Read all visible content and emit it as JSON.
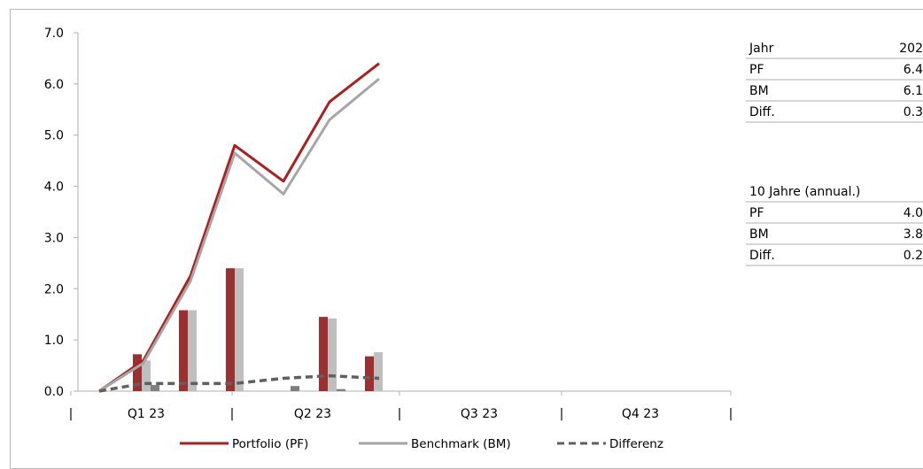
{
  "chart_data": {
    "type": "line",
    "ylim": [
      0,
      7
    ],
    "yticks": [
      "0.0",
      "1.0",
      "2.0",
      "3.0",
      "4.0",
      "5.0",
      "6.0",
      "7.0"
    ],
    "quarter_labels": [
      "Q1 23",
      "Q2 23",
      "Q3 23",
      "Q4 23"
    ],
    "boundary_ticks": [
      "|",
      "|",
      "|",
      "|",
      "|"
    ],
    "x": [
      0,
      1,
      2,
      3,
      4,
      5,
      6
    ],
    "series": [
      {
        "name": "Portfolio (PF)",
        "type": "line",
        "color": "#b01c1c",
        "style": "solid",
        "values": [
          0.0,
          0.6,
          2.25,
          4.8,
          4.1,
          5.65,
          6.4
        ]
      },
      {
        "name": "Benchmark (BM)",
        "type": "line",
        "color": "#a6a6a6",
        "style": "solid",
        "values": [
          0.0,
          0.55,
          2.15,
          4.65,
          3.85,
          5.3,
          6.1
        ]
      },
      {
        "name": "Differenz",
        "type": "line",
        "color": "#606060",
        "style": "dashed",
        "values": [
          0.0,
          0.15,
          0.15,
          0.15,
          0.25,
          0.3,
          0.25
        ]
      }
    ],
    "bars": [
      {
        "series": "PF monthly",
        "color": "#9b3030",
        "values": [
          0.72,
          1.58,
          2.4,
          0.0,
          1.45,
          0.68
        ]
      },
      {
        "series": "BM monthly",
        "color": "#bfbfbf",
        "values": [
          0.6,
          1.58,
          2.4,
          0.0,
          1.42,
          0.76
        ]
      },
      {
        "series": "Diff monthly",
        "color": "#7f7f7f",
        "values": [
          0.12,
          0.0,
          0.0,
          0.1,
          0.04,
          0.0
        ]
      }
    ]
  },
  "table_year": {
    "header_label": "Jahr",
    "header_value": "202",
    "rows": [
      {
        "label": "PF",
        "value": "6.4"
      },
      {
        "label": "BM",
        "value": "6.1"
      },
      {
        "label": "Diff.",
        "value": "0.3"
      }
    ]
  },
  "table_10y": {
    "header_label": "10 Jahre (annual.)",
    "rows": [
      {
        "label": "PF",
        "value": "4.0"
      },
      {
        "label": "BM",
        "value": "3.8"
      },
      {
        "label": "Diff.",
        "value": "0.2"
      }
    ]
  }
}
